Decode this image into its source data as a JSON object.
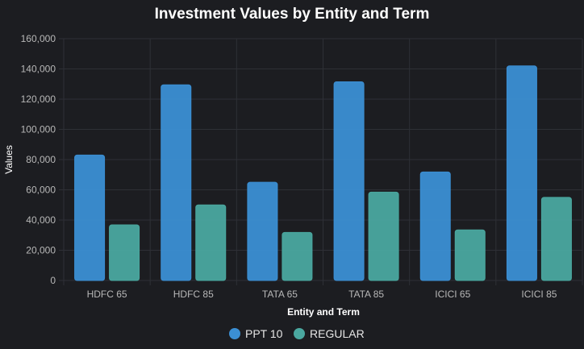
{
  "chart_data": {
    "type": "bar",
    "title": "Investment Values by Entity and Term",
    "xlabel": "Entity and Term",
    "ylabel": "Values",
    "categories": [
      "HDFC 65",
      "HDFC 85",
      "TATA 65",
      "TATA 85",
      "ICICI 65",
      "ICICI 85"
    ],
    "series": [
      {
        "name": "PPT 10",
        "color": "#3b8fd4",
        "values": [
          83000,
          129500,
          65000,
          131500,
          71800,
          142000
        ]
      },
      {
        "name": "REGULAR",
        "color": "#4aa8a0",
        "values": [
          36800,
          50000,
          31800,
          58500,
          33500,
          55000
        ]
      }
    ],
    "ylim": [
      0,
      160000
    ],
    "yticks": [
      "0",
      "20,000",
      "40,000",
      "60,000",
      "80,000",
      "100,000",
      "120,000",
      "140,000",
      "160,000"
    ],
    "grid": true,
    "legend_position": "bottom"
  }
}
